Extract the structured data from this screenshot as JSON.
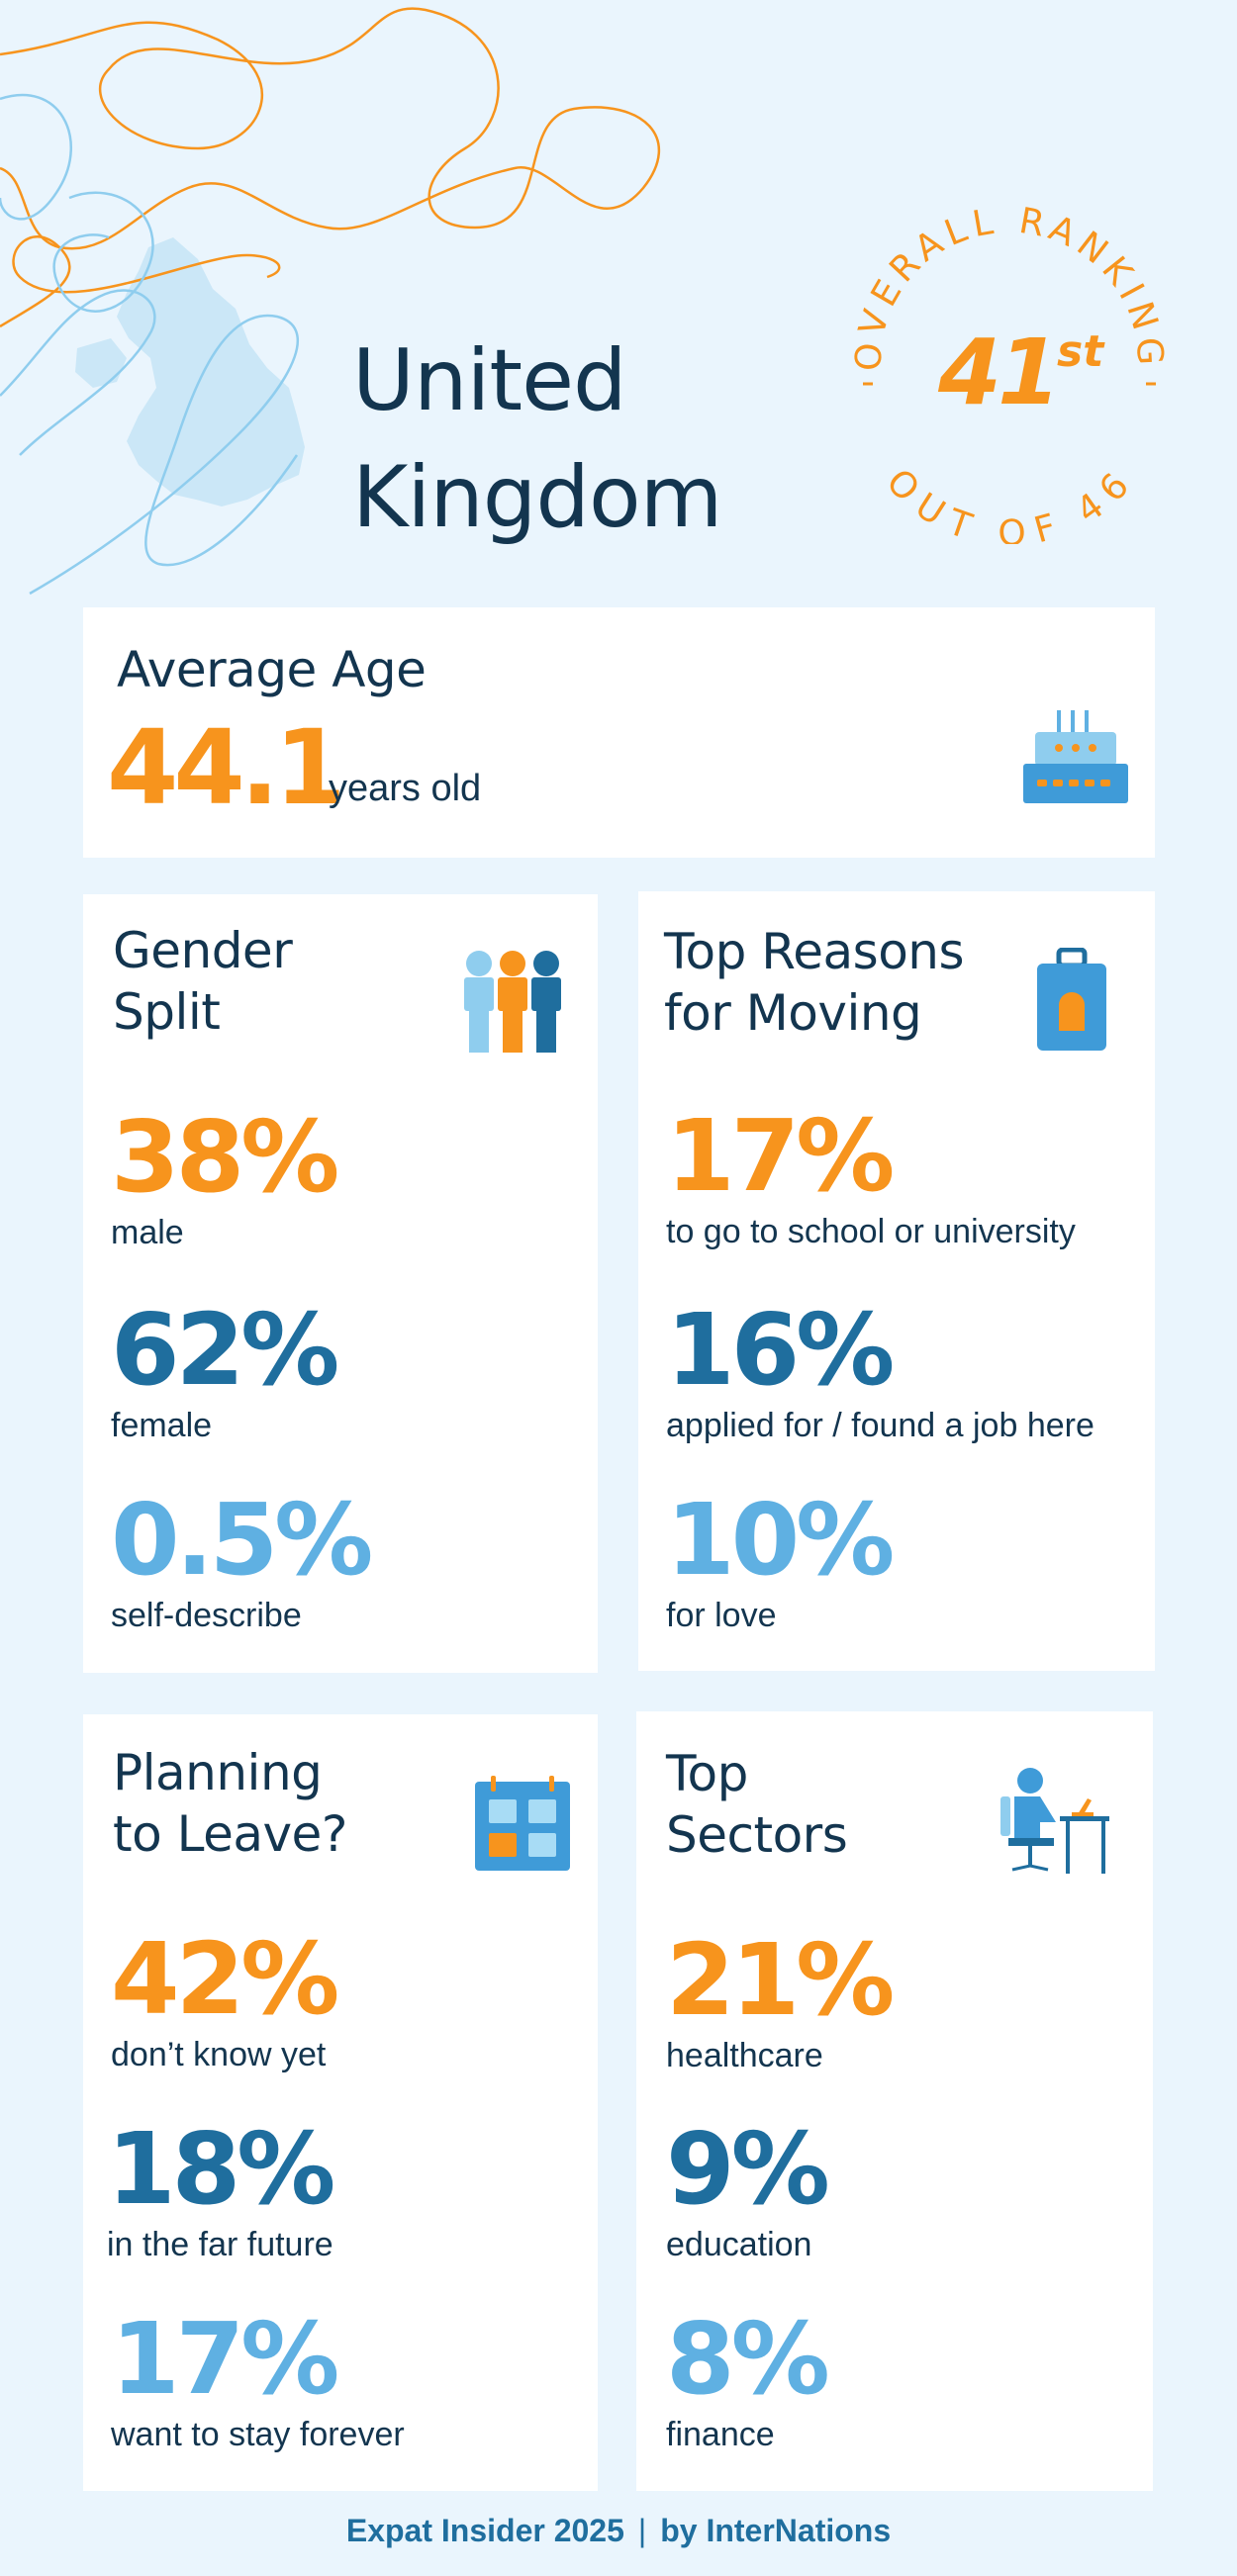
{
  "title": {
    "line1": "United",
    "line2": "Kingdom"
  },
  "ranking": {
    "arc_top": "OVERALL RANKING",
    "arc_bottom": "OUT OF 46",
    "rank": "41",
    "suffix": "st"
  },
  "average_age": {
    "title": "Average Age",
    "value": "44.1",
    "unit": "years old",
    "icon": "birthday-cake-icon"
  },
  "gender_split": {
    "title_line1": "Gender",
    "title_line2": "Split",
    "icon": "people-group-icon",
    "stats": [
      {
        "value": "38%",
        "label": "male"
      },
      {
        "value": "62%",
        "label": "female"
      },
      {
        "value": "0.5%",
        "label": "self-describe"
      }
    ]
  },
  "top_reasons": {
    "title_line1": "Top Reasons",
    "title_line2": "for Moving",
    "icon": "luggage-icon",
    "stats": [
      {
        "value": "17%",
        "label": "to go to school or university"
      },
      {
        "value": "16%",
        "label": "applied for / found a job here"
      },
      {
        "value": "10%",
        "label": "for love"
      }
    ]
  },
  "planning_to_leave": {
    "title_line1": "Planning",
    "title_line2": "to Leave?",
    "icon": "calendar-icon",
    "stats": [
      {
        "value": "42%",
        "label": "don’t know yet"
      },
      {
        "value": "18%",
        "label": "in the far future"
      },
      {
        "value": "17%",
        "label": "want to stay forever"
      }
    ]
  },
  "top_sectors": {
    "title_line1": "Top",
    "title_line2": "Sectors",
    "icon": "person-at-desk-icon",
    "stats": [
      {
        "value": "21%",
        "label": "healthcare"
      },
      {
        "value": "9%",
        "label": "education"
      },
      {
        "value": "8%",
        "label": "finance"
      }
    ]
  },
  "footer": {
    "left": "Expat Insider 2025",
    "separator": "|",
    "right": "by InterNations"
  },
  "colors": {
    "orange": "#f7941d",
    "dark_blue": "#1f6e9e",
    "light_blue": "#5fb0e2",
    "navy": "#13354f",
    "background": "#eaf5fd"
  }
}
